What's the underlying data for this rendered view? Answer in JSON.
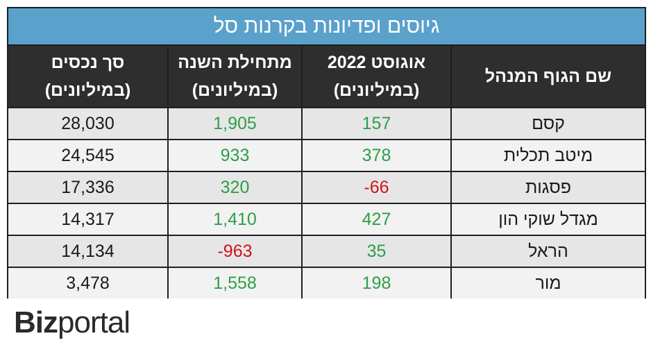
{
  "title": "גיוסים ופדיונות בקרנות סל",
  "columns": [
    {
      "line1": "שם הגוף המנהל",
      "line2": ""
    },
    {
      "line1": "אוגוסט 2022",
      "line2": "(במיליונים)"
    },
    {
      "line1": "מתחילת השנה",
      "line2": "(במיליונים)"
    },
    {
      "line1": "סך נכסים",
      "line2": "(במיליונים)"
    }
  ],
  "rows": [
    {
      "name": "קסם",
      "august": "157",
      "ytd": "1,905",
      "aum": "28,030"
    },
    {
      "name": "מיטב תכלית",
      "august": "378",
      "ytd": "933",
      "aum": "24,545"
    },
    {
      "name": "פסגות",
      "august": "-66",
      "ytd": "320",
      "aum": "17,336"
    },
    {
      "name": "מגדל שוקי הון",
      "august": "427",
      "ytd": "1,410",
      "aum": "14,317"
    },
    {
      "name": "הראל",
      "august": "35",
      "ytd": "-963",
      "aum": "14,134"
    },
    {
      "name": "מור",
      "august": "198",
      "ytd": "1,558",
      "aum": "3,478"
    }
  ],
  "colors": {
    "positive": "#2e9e47",
    "negative": "#d0121b",
    "title_bg": "#5aa1cc",
    "header_bg": "#2e2e2e"
  },
  "logo": {
    "part1": "Biz",
    "part2": "portal"
  },
  "chart_data": {
    "type": "table",
    "title": "גיוסים ופדיונות בקרנות סל",
    "columns": [
      "שם הגוף המנהל",
      "אוגוסט 2022 (במיליונים)",
      "מתחילת השנה (במיליונים)",
      "סך נכסים (במיליונים)"
    ],
    "categories": [
      "קסם",
      "מיטב תכלית",
      "פסגות",
      "מגדל שוקי הון",
      "הראל",
      "מור"
    ],
    "series": [
      {
        "name": "אוגוסט 2022 (במיליונים)",
        "values": [
          157,
          378,
          -66,
          427,
          35,
          198
        ]
      },
      {
        "name": "מתחילת השנה (במיליונים)",
        "values": [
          1905,
          933,
          320,
          1410,
          -963,
          1558
        ]
      },
      {
        "name": "סך נכסים (במיליונים)",
        "values": [
          28030,
          24545,
          17336,
          14317,
          14134,
          3478
        ]
      }
    ]
  }
}
